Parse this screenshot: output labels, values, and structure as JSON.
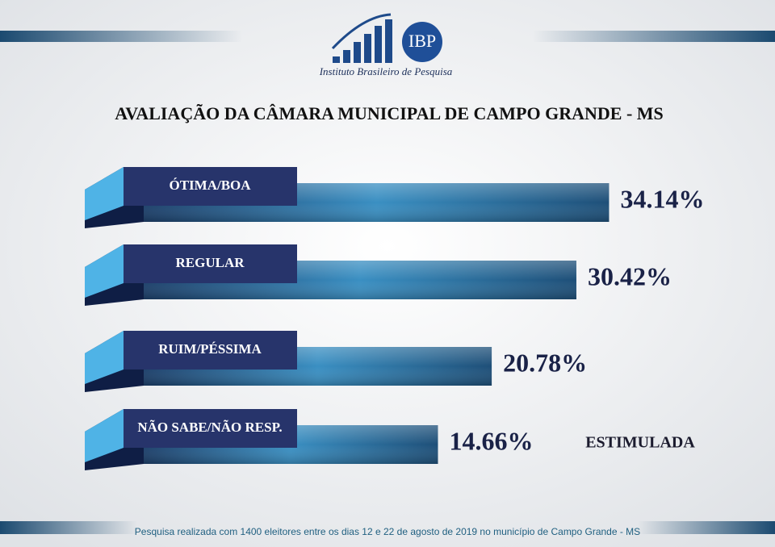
{
  "chart_data": {
    "type": "bar",
    "logo": {
      "mark": "IBP",
      "name": "Instituto Brasileiro de Pesquisa"
    },
    "title": "AVALIAÇÃO DA CÂMARA MUNICIPAL DE CAMPO GRANDE - MS",
    "categories": [
      "ÓTIMA/BOA",
      "REGULAR",
      "RUIM/PÉSSIMA",
      "NÃO SABE/NÃO RESP."
    ],
    "values": [
      34.14,
      30.42,
      20.78,
      14.66
    ],
    "value_labels": [
      "34.14%",
      "30.42%",
      "20.78%",
      "14.66%"
    ],
    "annotation": "ESTIMULADA",
    "footnote": "Pesquisa realizada com 1400 eleitores entre os dias 12 e 22 de agosto de 2019 no município de Campo Grande - MS"
  }
}
